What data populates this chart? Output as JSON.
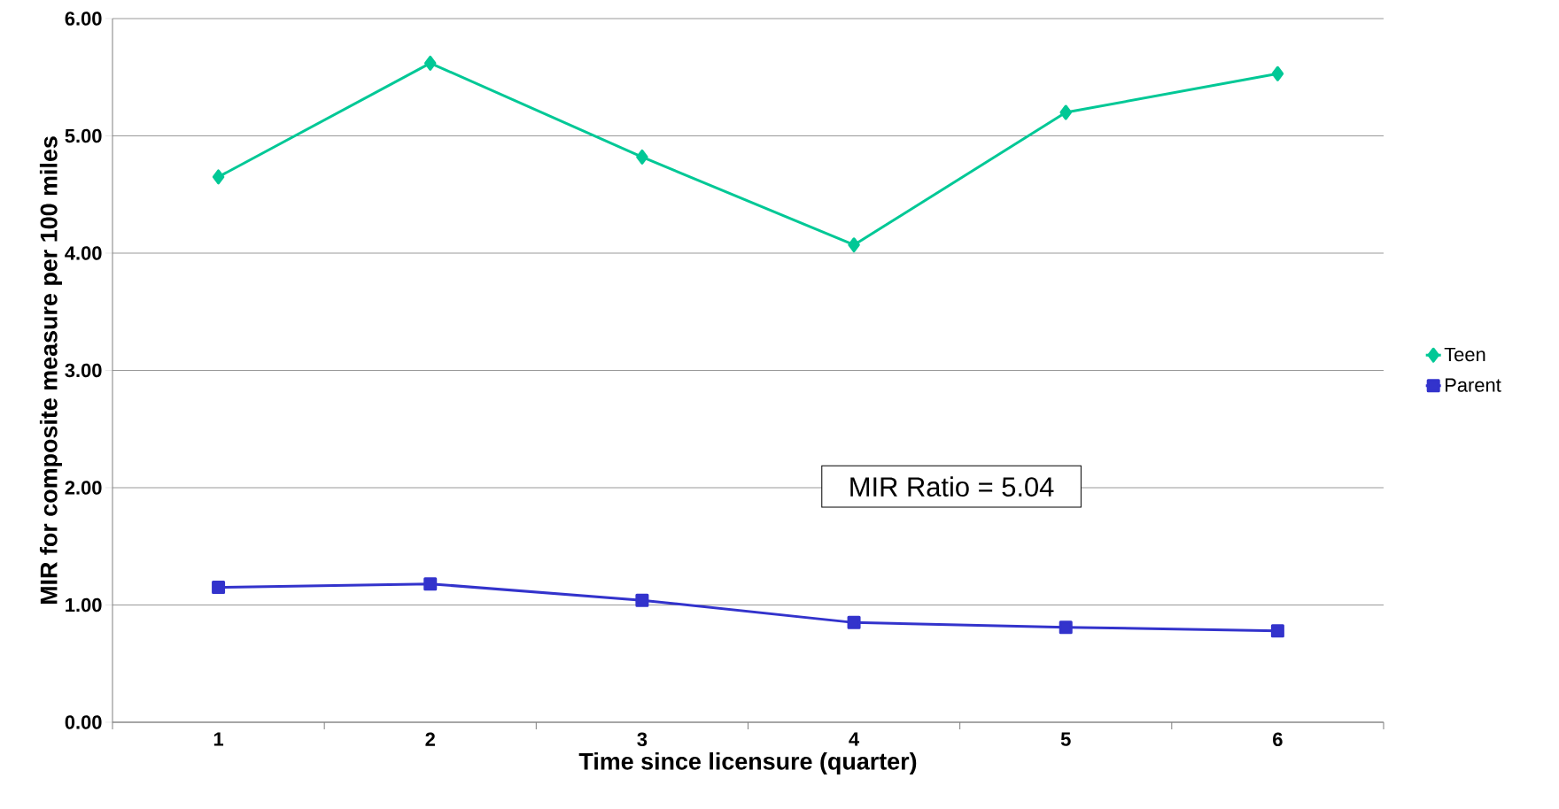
{
  "chart_data": {
    "type": "line",
    "xlabel": "Time since licensure (quarter)",
    "ylabel": "MIR for composite measure per 100 miles",
    "categories": [
      "1",
      "2",
      "3",
      "4",
      "5",
      "6"
    ],
    "series": [
      {
        "name": "Teen",
        "color": "#00c896",
        "marker": "diamond",
        "values": [
          4.65,
          5.62,
          4.82,
          4.07,
          5.2,
          5.53
        ]
      },
      {
        "name": "Parent",
        "color": "#3333cc",
        "marker": "square",
        "values": [
          1.15,
          1.18,
          1.04,
          0.85,
          0.81,
          0.78
        ]
      }
    ],
    "ylim": [
      0,
      6
    ],
    "yticks": [
      {
        "value": 0,
        "label": "0.00"
      },
      {
        "value": 1,
        "label": "1.00"
      },
      {
        "value": 2,
        "label": "2.00"
      },
      {
        "value": 3,
        "label": "3.00"
      },
      {
        "value": 4,
        "label": "4.00"
      },
      {
        "value": 5,
        "label": "5.00"
      },
      {
        "value": 6,
        "label": "6.00"
      }
    ],
    "grid": "y",
    "legend": "right",
    "annotations": [
      "MIR Ratio = 5.04"
    ]
  }
}
